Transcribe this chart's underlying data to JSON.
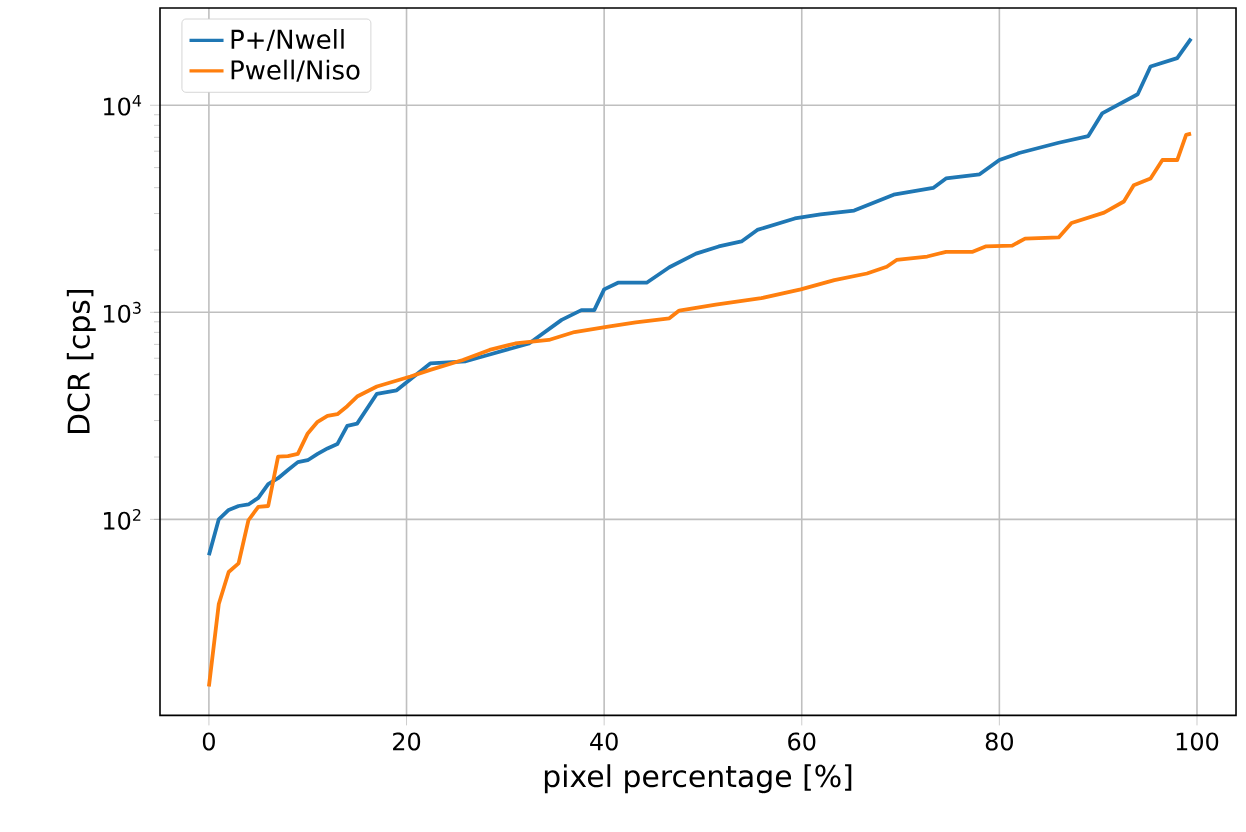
{
  "chart_data": {
    "type": "line",
    "xlabel": "pixel percentage [%]",
    "ylabel": "DCR [cps]",
    "log": "y",
    "grid": true,
    "legend": "top left",
    "xlim": [
      -4.95,
      103.95
    ],
    "ylim": [
      11.3,
      29500
    ],
    "xticks": [
      0,
      20,
      40,
      60,
      80,
      100
    ],
    "yticks": [
      {
        "value": 100,
        "label": "10$^{2}$"
      },
      {
        "value": 1000,
        "label": "10$^{3}$"
      },
      {
        "value": 10000,
        "label": "10$^{4}$"
      }
    ],
    "series": [
      {
        "name": "P+/Nwell",
        "color": "#1f77b4",
        "x": [
          0,
          1,
          2,
          3,
          4,
          5,
          6,
          7,
          8,
          9,
          10,
          11,
          12,
          13,
          14,
          15,
          17,
          19,
          22.4,
          26,
          27.7,
          32.4,
          35.7,
          37.7,
          39,
          40,
          41.4,
          44.3,
          46.6,
          49.3,
          51.6,
          53.9,
          55.5,
          59.3,
          61.9,
          65.3,
          69.3,
          73.3,
          74.6,
          78,
          80,
          82,
          86,
          89,
          90.4,
          94,
          95.3,
          98,
          99.4
        ],
        "values": [
          67,
          100,
          111,
          116,
          118,
          127,
          148,
          158,
          173,
          189,
          193,
          207,
          220,
          231,
          283,
          290,
          404,
          420,
          566,
          580,
          612,
          707,
          919,
          1024,
          1024,
          1290,
          1390,
          1390,
          1650,
          1920,
          2080,
          2200,
          2500,
          2840,
          2970,
          3100,
          3700,
          3990,
          4430,
          4640,
          5440,
          5880,
          6590,
          7100,
          9130,
          11300,
          15400,
          16900,
          21000
        ]
      },
      {
        "name": "Pwell/Niso",
        "color": "#ff7f0e",
        "x": [
          0,
          1,
          2,
          3,
          4,
          5,
          6,
          7,
          8,
          9,
          10,
          11,
          12,
          13,
          14,
          15,
          17,
          20.4,
          22.4,
          25.7,
          28.4,
          31,
          34.4,
          37,
          40.4,
          43.2,
          46.6,
          47.6,
          51.3,
          55.9,
          59.9,
          63.3,
          66.6,
          68.6,
          69.6,
          72.7,
          74.6,
          77.3,
          78.6,
          81.3,
          82.6,
          86,
          87.3,
          90.6,
          92.6,
          93.6,
          95.3,
          96.5,
          98,
          98.9,
          99.4
        ],
        "values": [
          15.6,
          39,
          55.7,
          61.3,
          99,
          115,
          116,
          201,
          202,
          207,
          260,
          296,
          316,
          322,
          352,
          392,
          438,
          490,
          527,
          588,
          658,
          707,
          735,
          803,
          852,
          894,
          935,
          1020,
          1090,
          1170,
          1290,
          1430,
          1540,
          1660,
          1790,
          1860,
          1960,
          1960,
          2080,
          2100,
          2270,
          2300,
          2700,
          3030,
          3430,
          4110,
          4430,
          5440,
          5440,
          7200,
          7300
        ]
      }
    ]
  }
}
